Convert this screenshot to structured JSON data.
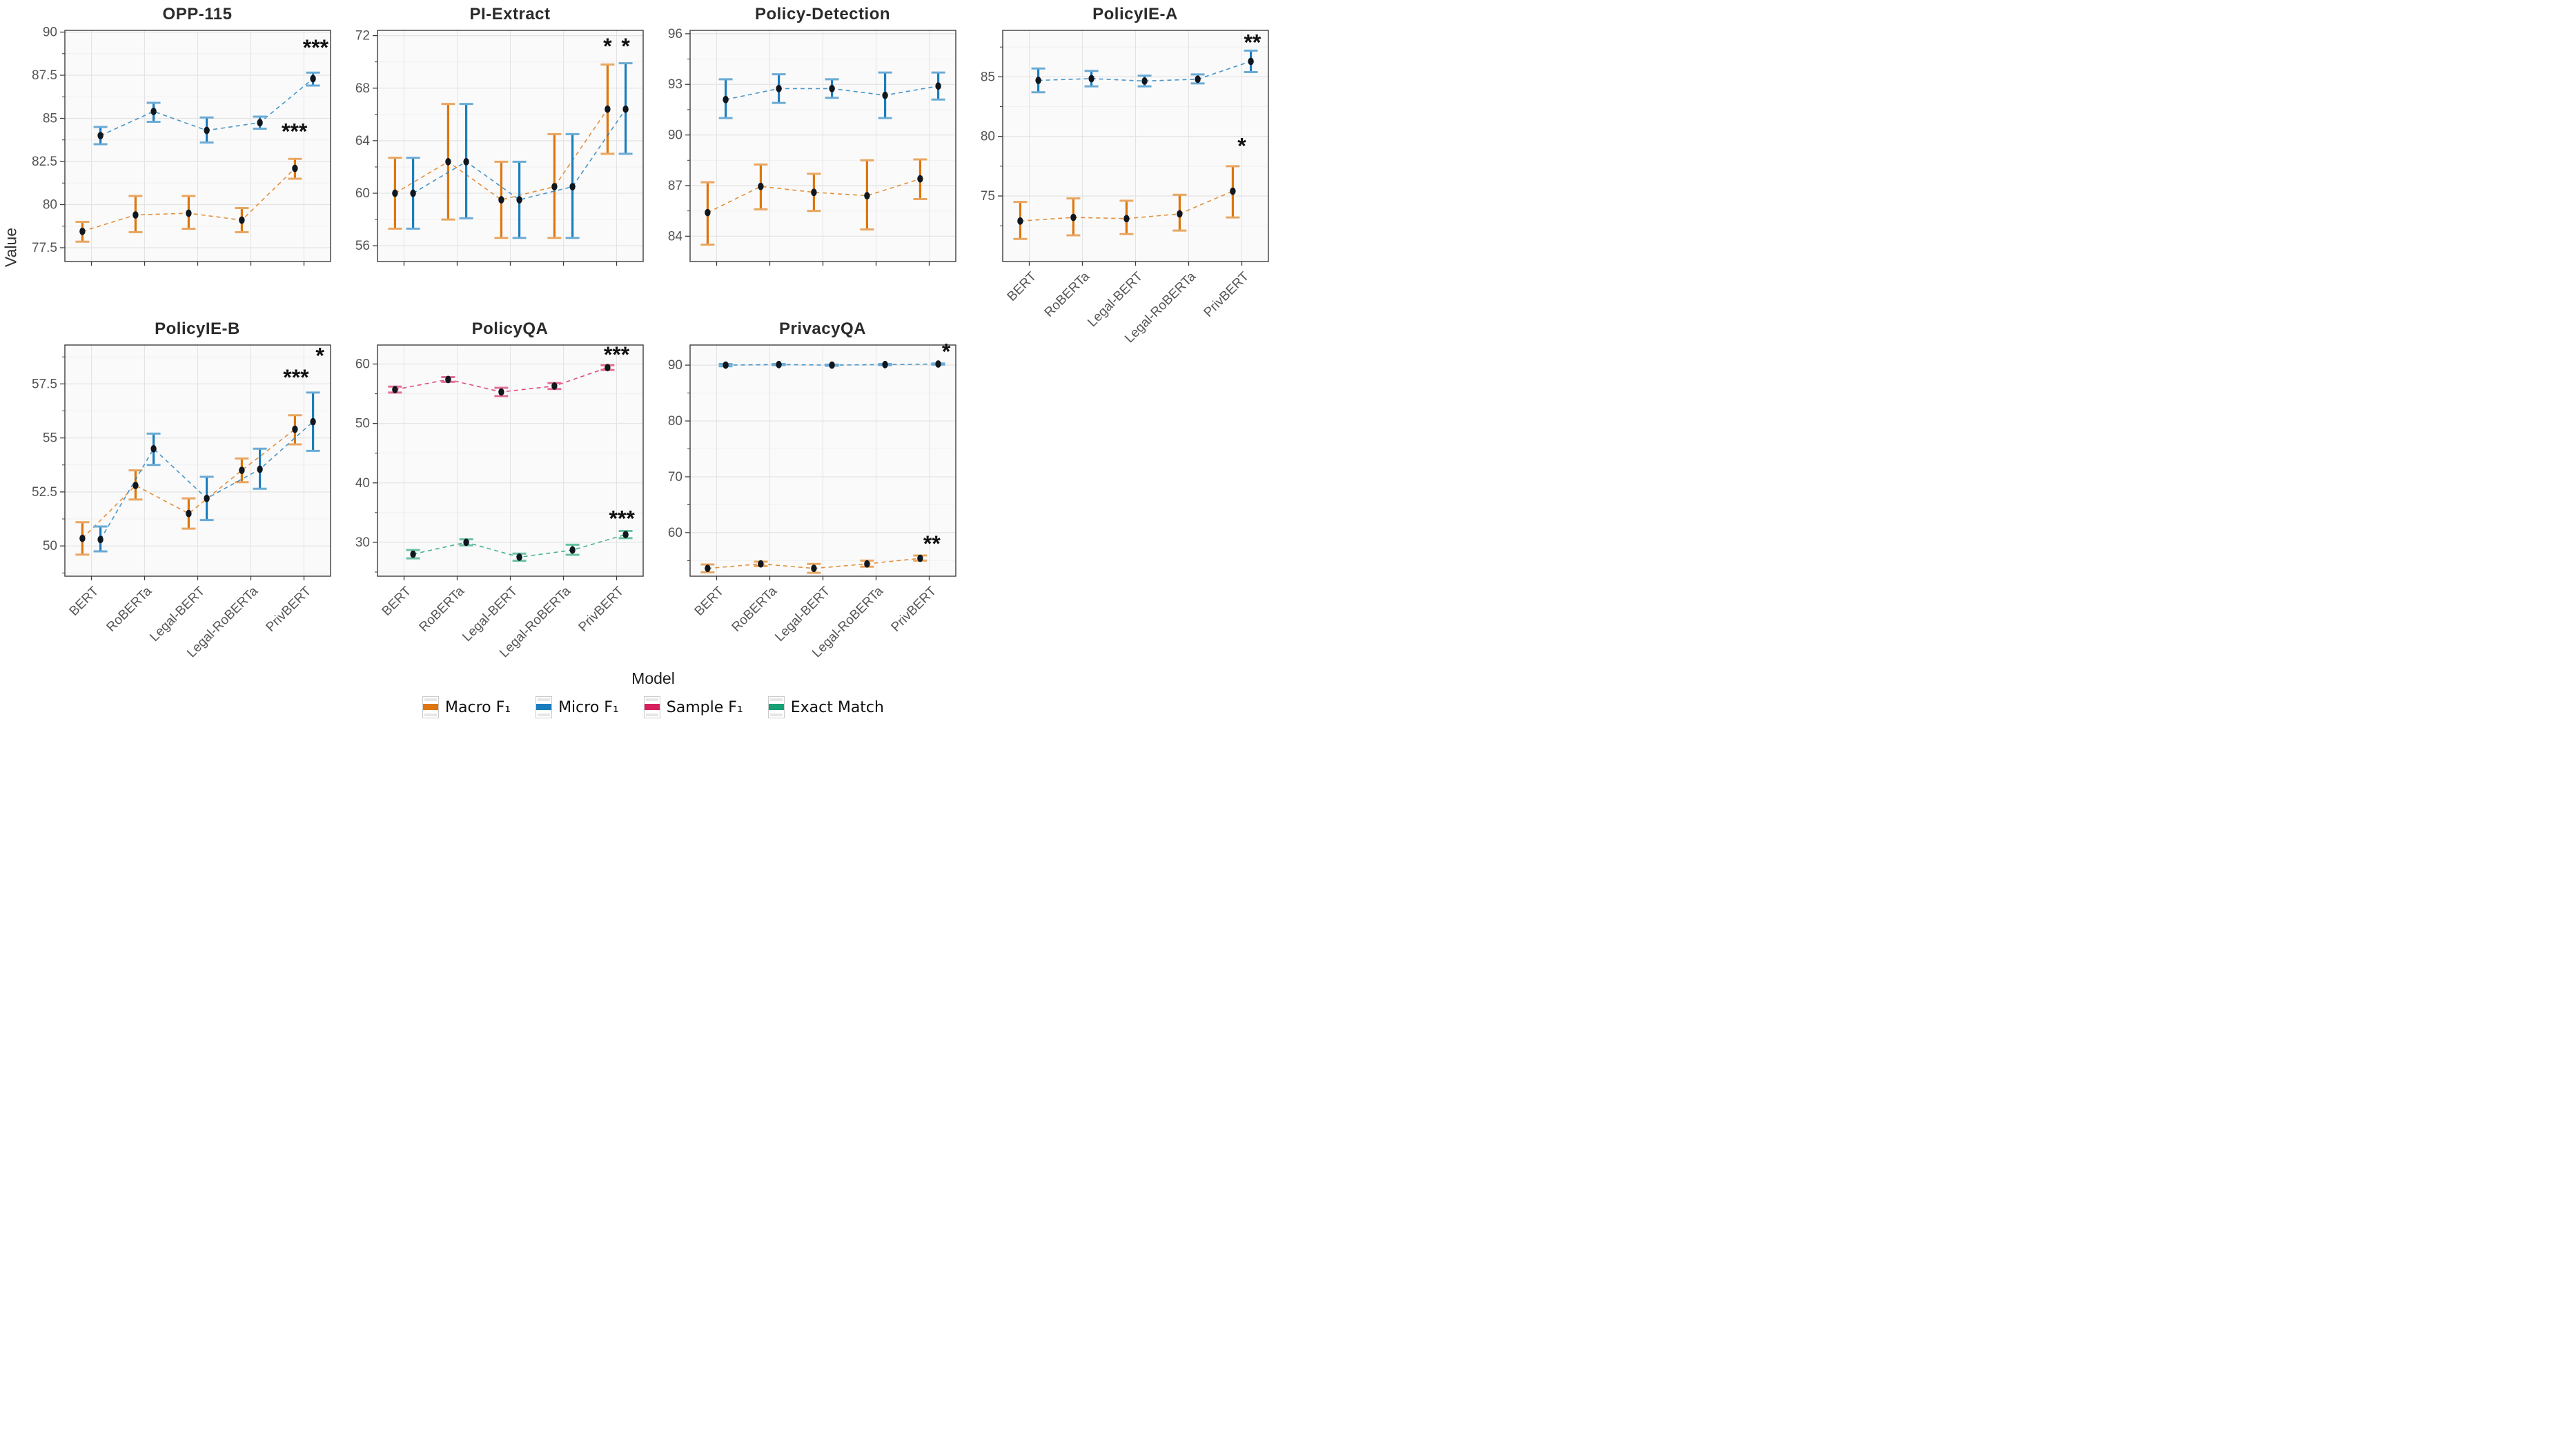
{
  "figure": {
    "y_axis_label": "Value",
    "x_axis_label": "Model"
  },
  "models": [
    "BERT",
    "RoBERTa",
    "Legal-BERT",
    "Legal-RoBERTa",
    "PrivBERT"
  ],
  "colors": {
    "macro": "#DD760C",
    "micro": "#1B7DBE",
    "sample": "#D6205F",
    "exact": "#17A074",
    "marker": "#10171E",
    "grid_major": "#e3e3e3",
    "grid_minor": "#f0f0f0",
    "panel_bg": "#fafafa",
    "panel_border": "#3d3d3d",
    "tick_label": "#545454",
    "annotation": "#111111"
  },
  "legend": [
    {
      "key": "macro",
      "label": "Macro F₁"
    },
    {
      "key": "micro",
      "label": "Micro F₁"
    },
    {
      "key": "sample",
      "label": "Sample F₁"
    },
    {
      "key": "exact",
      "label": "Exact Match"
    }
  ],
  "chart_data": [
    {
      "type": "line",
      "title": "OPP-115",
      "ylim": [
        76.7,
        90.1
      ],
      "ytick_values": [
        77.5,
        80,
        82.5,
        85,
        87.5,
        90
      ],
      "ytick_labels": [
        "77.5",
        "80",
        "82.5",
        "85",
        "87.5",
        "90"
      ],
      "show_xlabels": false,
      "series": [
        {
          "key": "macro",
          "name": "Macro F1",
          "values": [
            78.45,
            79.4,
            79.5,
            79.1,
            82.1
          ],
          "err_lo": [
            77.85,
            78.4,
            78.6,
            78.4,
            81.5
          ],
          "err_hi": [
            79.0,
            80.5,
            80.5,
            79.8,
            82.65
          ]
        },
        {
          "key": "micro",
          "name": "Micro F1",
          "values": [
            84.0,
            85.4,
            84.3,
            84.75,
            87.3
          ],
          "err_lo": [
            83.5,
            84.8,
            83.6,
            84.4,
            86.9
          ],
          "err_hi": [
            84.5,
            85.9,
            85.05,
            85.1,
            87.65
          ]
        }
      ],
      "annotations": [
        {
          "text": "***",
          "x": 4.72,
          "y": 89.1
        },
        {
          "text": "***",
          "x": 4.32,
          "y": 84.25
        }
      ]
    },
    {
      "type": "line",
      "title": "PI-Extract",
      "ylim": [
        54.8,
        72.4
      ],
      "ytick_values": [
        56,
        60,
        64,
        68,
        72
      ],
      "ytick_labels": [
        "56",
        "60",
        "64",
        "68",
        "72"
      ],
      "show_xlabels": false,
      "series": [
        {
          "key": "macro",
          "name": "Macro F1",
          "values": [
            60.0,
            62.4,
            59.5,
            60.5,
            66.4
          ],
          "err_lo": [
            57.3,
            58.0,
            56.6,
            56.6,
            63.0
          ],
          "err_hi": [
            62.7,
            66.8,
            62.4,
            64.5,
            69.8
          ]
        },
        {
          "key": "micro",
          "name": "Micro F1",
          "values": [
            60.0,
            62.4,
            59.5,
            60.5,
            66.4
          ],
          "err_lo": [
            57.3,
            58.1,
            56.6,
            56.6,
            63.0
          ],
          "err_hi": [
            62.7,
            66.8,
            62.4,
            64.5,
            69.9
          ]
        }
      ],
      "annotations": [
        {
          "text": "*",
          "x": 4.33,
          "y": 71.2
        },
        {
          "text": "*",
          "x": 4.67,
          "y": 71.2
        }
      ]
    },
    {
      "type": "line",
      "title": "Policy-Detection",
      "ylim": [
        82.5,
        96.2
      ],
      "ytick_values": [
        84,
        87,
        90,
        93,
        96
      ],
      "ytick_labels": [
        "84",
        "87",
        "90",
        "93",
        "96"
      ],
      "show_xlabels": false,
      "series": [
        {
          "key": "macro",
          "name": "Macro F1",
          "values": [
            85.4,
            86.95,
            86.6,
            86.4,
            87.4
          ],
          "err_lo": [
            83.5,
            85.6,
            85.5,
            84.4,
            86.2
          ],
          "err_hi": [
            87.2,
            88.25,
            87.7,
            88.5,
            88.55
          ]
        },
        {
          "key": "micro",
          "name": "Micro F1",
          "values": [
            92.1,
            92.75,
            92.75,
            92.35,
            92.9
          ],
          "err_lo": [
            91.0,
            91.9,
            92.2,
            91.0,
            92.1
          ],
          "err_hi": [
            93.3,
            93.6,
            93.3,
            93.7,
            93.7
          ]
        }
      ],
      "annotations": []
    },
    {
      "type": "line",
      "title": "PolicyIE-A",
      "ylim": [
        69.5,
        88.9
      ],
      "ytick_values": [
        75,
        80,
        85
      ],
      "ytick_labels": [
        "75",
        "80",
        "85"
      ],
      "show_xlabels": true,
      "series": [
        {
          "key": "macro",
          "name": "Macro F1",
          "values": [
            72.9,
            73.2,
            73.1,
            73.5,
            75.4
          ],
          "err_lo": [
            71.4,
            71.7,
            71.8,
            72.1,
            73.2
          ],
          "err_hi": [
            74.5,
            74.8,
            74.6,
            75.1,
            77.5
          ]
        },
        {
          "key": "micro",
          "name": "Micro F1",
          "values": [
            84.7,
            84.85,
            84.65,
            84.8,
            86.3
          ],
          "err_lo": [
            83.7,
            84.2,
            84.2,
            84.45,
            85.4
          ],
          "err_hi": [
            85.7,
            85.5,
            85.1,
            85.2,
            87.2
          ]
        }
      ],
      "annotations": [
        {
          "text": "**",
          "x": 4.7,
          "y": 87.9
        },
        {
          "text": "*",
          "x": 4.5,
          "y": 79.2
        }
      ]
    },
    {
      "type": "line",
      "title": "PolicyIE-B",
      "ylim": [
        48.6,
        59.3
      ],
      "ytick_values": [
        50,
        52.5,
        55,
        57.5
      ],
      "ytick_labels": [
        "50",
        "52.5",
        "55",
        "57.5"
      ],
      "show_xlabels": true,
      "series": [
        {
          "key": "macro",
          "name": "Macro F1",
          "values": [
            50.35,
            52.8,
            51.5,
            53.5,
            55.4
          ],
          "err_lo": [
            49.6,
            52.15,
            50.8,
            52.95,
            54.7
          ],
          "err_hi": [
            51.1,
            53.5,
            52.2,
            54.05,
            56.05
          ]
        },
        {
          "key": "micro",
          "name": "Micro F1",
          "values": [
            50.3,
            54.5,
            52.2,
            53.55,
            55.75
          ],
          "err_lo": [
            49.75,
            53.75,
            51.2,
            52.65,
            54.4
          ],
          "err_hi": [
            50.9,
            55.2,
            53.2,
            54.5,
            57.1
          ]
        }
      ],
      "annotations": [
        {
          "text": "*",
          "x": 4.8,
          "y": 58.8
        },
        {
          "text": "***",
          "x": 4.35,
          "y": 57.8
        }
      ]
    },
    {
      "type": "line",
      "title": "PolicyQA",
      "ylim": [
        24.3,
        63.2
      ],
      "ytick_values": [
        30,
        40,
        50,
        60
      ],
      "ytick_labels": [
        "30",
        "40",
        "50",
        "60"
      ],
      "show_xlabels": true,
      "series": [
        {
          "key": "sample",
          "name": "Sample F1",
          "values": [
            55.7,
            57.4,
            55.3,
            56.3,
            59.4
          ],
          "err_lo": [
            55.2,
            57.0,
            54.6,
            55.8,
            59.0
          ],
          "err_hi": [
            56.2,
            57.8,
            56.0,
            56.8,
            59.8
          ]
        },
        {
          "key": "exact",
          "name": "Exact Match",
          "values": [
            28.0,
            30.0,
            27.5,
            28.7,
            31.3
          ],
          "err_lo": [
            27.3,
            29.5,
            26.9,
            27.9,
            30.7
          ],
          "err_hi": [
            28.7,
            30.5,
            28.1,
            29.6,
            31.9
          ]
        }
      ],
      "annotations": [
        {
          "text": "***",
          "x": 4.5,
          "y": 61.6
        },
        {
          "text": "***",
          "x": 4.6,
          "y": 34.0
        }
      ]
    },
    {
      "type": "line",
      "title": "PrivacyQA",
      "ylim": [
        52.2,
        93.6
      ],
      "ytick_values": [
        60,
        70,
        80,
        90
      ],
      "ytick_labels": [
        "60",
        "70",
        "80",
        "90"
      ],
      "show_xlabels": true,
      "series": [
        {
          "key": "macro",
          "name": "Macro F1",
          "values": [
            53.6,
            54.4,
            53.6,
            54.4,
            55.4
          ],
          "err_lo": [
            52.9,
            54.0,
            52.8,
            53.9,
            55.0
          ],
          "err_hi": [
            54.3,
            54.8,
            54.4,
            55.0,
            55.9
          ]
        },
        {
          "key": "micro",
          "name": "Micro F1",
          "values": [
            90.0,
            90.1,
            90.0,
            90.1,
            90.2
          ],
          "err_lo": [
            89.8,
            90.0,
            89.9,
            90.0,
            90.1
          ],
          "err_hi": [
            90.2,
            90.2,
            90.1,
            90.2,
            90.3
          ]
        }
      ],
      "annotations": [
        {
          "text": "*",
          "x": 4.82,
          "y": 92.4
        },
        {
          "text": "**",
          "x": 4.55,
          "y": 58.0
        }
      ]
    }
  ]
}
